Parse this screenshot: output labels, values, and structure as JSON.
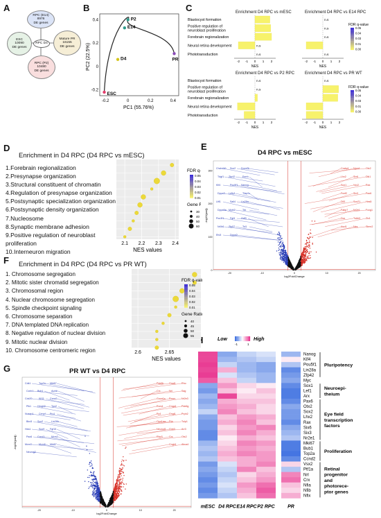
{
  "panel_labels": [
    "A",
    "B",
    "C",
    "D",
    "E",
    "F",
    "G",
    "H"
  ],
  "venn": {
    "esc": {
      "name": "ESC",
      "count": "10090",
      "unit": "DE genes"
    },
    "e14": {
      "name": "RPC (E14)",
      "count": "8976",
      "unit": "DE genes"
    },
    "p2": {
      "name": "RPC (P2)",
      "count": "10480",
      "unit": "DE genes"
    },
    "pr": {
      "name": "Mature PR",
      "count": "16155",
      "unit": "DE genes"
    },
    "center": "RPC D4"
  },
  "colors": {
    "up": "#d73027",
    "down": "#2c3fb7",
    "ns": "#111111",
    "fdr_low": "#f7f26b",
    "fdr_high": "#3a2bd8",
    "heat_low": "#3b6ee0",
    "heat_high": "#e8338e"
  },
  "chart_data": [
    {
      "id": "B",
      "type": "scatter",
      "xlabel": "PC1 (55.76%)",
      "ylabel": "PC2 (22.5%)",
      "xlim": [
        -0.25,
        0.45
      ],
      "ylim": [
        -0.25,
        0.45
      ],
      "xticks": [
        "-0.2",
        "0",
        "0.2",
        "0.4"
      ],
      "yticks": [
        "-0.2",
        "0",
        "0.2",
        "0.4"
      ],
      "points": [
        {
          "label": "ESC",
          "x": -0.21,
          "y": -0.22,
          "color": "#e23c6b"
        },
        {
          "label": "D4",
          "x": -0.09,
          "y": 0.06,
          "color": "#d4c51a"
        },
        {
          "label": "E14",
          "x": -0.03,
          "y": 0.33,
          "color": "#2e9a8a"
        },
        {
          "label": "P2",
          "x": 0.0,
          "y": 0.4,
          "color": "#2e9a8a"
        },
        {
          "label": "PR",
          "x": 0.41,
          "y": 0.11,
          "color": "#8a4bb8"
        }
      ]
    },
    {
      "id": "C",
      "type": "bar",
      "terms": [
        "Blastocyst formation",
        "Positive regulation of neuroblast proliferation",
        "Forebrain regionalization",
        "Neural retina development",
        "Phototransduction"
      ],
      "xlabel": "NES",
      "xticks": [
        "-2",
        "-1",
        "0",
        "1",
        "2"
      ],
      "legend_title": "FDR q-value",
      "legend_ticks": [
        "0.05",
        "0.04",
        "0.03",
        "0.01",
        "0.00"
      ],
      "facets": [
        {
          "title": "Enrichment D4 RPC vs mESC",
          "values": [
            1.8,
            1.9,
            2.0,
            -2.0,
            null
          ],
          "labels": [
            "",
            "",
            "",
            "n.s",
            "n.s"
          ]
        },
        {
          "title": "Enrichment D4 RPC vs E14 RPC",
          "values": [
            null,
            null,
            null,
            -2.0,
            null
          ],
          "labels": [
            "n.s",
            "n.s",
            "n.s",
            "",
            "n.s"
          ]
        },
        {
          "title": "Enrichment D4 RPC vs P2 RPC",
          "values": [
            null,
            null,
            0.3,
            -2.1,
            -1.3
          ],
          "labels": [
            "n.s",
            "n.s",
            "",
            "",
            ""
          ]
        },
        {
          "title": "Enrichment D4 RPC vs PR WT",
          "values": [
            null,
            1.9,
            1.8,
            -2.0,
            -2.0
          ],
          "labels": [
            "n.s",
            "",
            "",
            "",
            ""
          ]
        }
      ]
    },
    {
      "id": "D",
      "type": "scatter",
      "title": "Enrichment in D4 RPC (D4 RPC vs mESC)",
      "terms": [
        "1.Forebrain regionalization",
        "2.Presynapse organization",
        "3.Structural constituent of chromatin",
        "4.Regulation of presynapse organization",
        "5.Postsynaptic specialization organization",
        "6.Postsynaptic density organization",
        "7.Nucleosome",
        "8.Synaptic membrane adhesion",
        "9.Positive regulation of neuroblast proliferation",
        "10.Interneuron migration"
      ],
      "nes": [
        2.38,
        2.33,
        2.29,
        2.26,
        2.21,
        2.19,
        2.17,
        2.15,
        2.13,
        2.1
      ],
      "gene_ratio": [
        40,
        50,
        60,
        30,
        50,
        50,
        40,
        30,
        40,
        30
      ],
      "xlabel": "NES values",
      "xlim": [
        2.05,
        2.42
      ],
      "xticks": [
        "2.1",
        "2.2",
        "2.3",
        "2.4"
      ],
      "legend_color_title": "FDR q-value",
      "legend_color_ticks": [
        "0.05",
        "0.04",
        "0.03",
        "0.02",
        "0.01"
      ],
      "legend_size_title": "Gene Ratio (%)",
      "legend_size_ticks": [
        "30",
        "40",
        "50",
        "60"
      ]
    },
    {
      "id": "E",
      "type": "scatter",
      "title": "D4 RPC vs mESC",
      "xlabel": "log2FoldChange",
      "ylabel": "-log10(padj)",
      "xticks": [
        "-20",
        "-10",
        "0",
        "10",
        "20"
      ],
      "yticks": [
        "0",
        "100",
        "200",
        "300"
      ],
      "labels_left": [
        "Chchd10",
        "Sox2",
        "Dnmt3l",
        "Tdgf1",
        "Zfp42",
        "Esrrb",
        "Klf4",
        "Pou5f1",
        "Nanog",
        "Dppa3",
        "Lefty1",
        "Tfap2c",
        "Utf1",
        "Sall4",
        "Lin28a",
        "Dppa5a",
        "Mybl2",
        "Trh",
        "Pou3f1",
        "Fgf4",
        "Gdf3",
        "Nr0b1",
        "Zfp57",
        "Tcl1",
        "Etv5",
        "Dppa2"
      ],
      "labels_right": [
        "Otx2",
        "Npm1",
        "Crabp1",
        "Dlk1",
        "Six6",
        "Lhx2",
        "Rax",
        "Vsx2",
        "Sox1",
        "Pax6",
        "Six3",
        "Fezf2",
        "Hes5",
        "Sox21",
        "Dll3",
        "Foxg1",
        "Nr2e1",
        "Fabp7",
        "Zic1",
        "Tubb3",
        "Dcx",
        "Stmn2",
        "Nes",
        "Ascl1"
      ]
    },
    {
      "id": "F",
      "type": "scatter",
      "title": "Enrichment in D4 RPC (D4 RPC vs PR WT)",
      "terms": [
        "1. Chromosome segregation",
        "2. Mitotic sister chromatid segregation",
        "3. Chromosomal region",
        "4. Nuclear chromosome segregation",
        "5. Spindle checkpoint signaling",
        "6. Chromosome separation",
        "7. DNA templated DNA replication",
        "8. Negative regulation of nuclear division",
        "9. Mitotic nuclear division",
        "10. Chromosome centromeric region"
      ],
      "nes": [
        2.69,
        2.69,
        2.67,
        2.66,
        2.66,
        2.65,
        2.64,
        2.63,
        2.63,
        2.63
      ],
      "gene_ratio": [
        50,
        45,
        50,
        55,
        40,
        45,
        40,
        40,
        40,
        45
      ],
      "xlabel": "NES values",
      "xlim": [
        2.59,
        2.7
      ],
      "xticks": [
        "2.6",
        "2.65"
      ],
      "legend_color_title": "FDR q-value",
      "legend_color_ticks": [
        "0.05",
        "0.04",
        "0.03",
        "0.02",
        "0.01"
      ],
      "legend_size_title": "Gene Ratio (%)",
      "legend_size_ticks": [
        "40",
        "45",
        "50",
        "55"
      ]
    },
    {
      "id": "G",
      "type": "scatter",
      "title": "PR WT vs D4 RPC",
      "xlabel": "log2FoldChange",
      "ylabel": "-log10(padj)",
      "xticks": [
        "-20",
        "-10",
        "0",
        "10",
        "20"
      ],
      "labels_left": [
        "Cdk1",
        "Top2a",
        "Mki67",
        "Ccnb1",
        "Bub1",
        "Aurkb",
        "Cdc20",
        "Kif11",
        "Ccna2",
        "Plk1",
        "Hmgb2",
        "Tpx2",
        "Nusap1",
        "Cenpf",
        "Prc1",
        "Birc5",
        "Sox2",
        "Lin28b",
        "Hes1",
        "Sox9",
        "Fgf15",
        "Pax6",
        "Ccnd1",
        "Mcm2",
        "Mcm3",
        "Mcm6",
        "Mki67",
        "Neurog2"
      ],
      "labels_right": [
        "Rho",
        "Gnat1",
        "Pde6b",
        "Sag",
        "Nrl",
        "Crx",
        "Nr2e3",
        "Rcvrn",
        "Guca1a",
        "Pde6g",
        "Cnga1",
        "Rom1",
        "Prph2",
        "Gngt1",
        "Rp1",
        "Tulp1",
        "Pdc",
        "Opn1sw",
        "Arr3",
        "Gnb3",
        "Neurod1",
        "Otx2",
        "Crx",
        "Rbp3",
        "Abca4",
        "Cngb1"
      ]
    },
    {
      "id": "H",
      "type": "heatmap",
      "columns": [
        "mESC",
        "D4 RPC",
        "E14 RPC",
        "P2 RPC",
        "PR"
      ],
      "legend_low": "Low",
      "legend_high": "High",
      "legend_ticks": [
        "-1",
        "1"
      ],
      "genes": [
        "Nanog",
        "Klf4",
        "Pou5f1",
        "Lin28a",
        "Zfp42",
        "Myc",
        "Sox1",
        "Lef1",
        "Arx",
        "Pax6",
        "Otx2",
        "Sox2",
        "Lhx2",
        "Rax",
        "Six6",
        "Six3",
        "Nr2e1",
        "Mki67",
        "Bub1",
        "Top2a",
        "Ccnd2",
        "Vsx2",
        "Ptf1a",
        "Nrl",
        "Crx",
        "Nfia",
        "Nfib",
        "Nfix"
      ],
      "groups": [
        {
          "label": "Pluripotency",
          "start": 0,
          "end": 4
        },
        {
          "label": "Neuroepi-\ntheium",
          "start": 6,
          "end": 8
        },
        {
          "label": "Eye field\ntranscription\nfactors",
          "start": 9,
          "end": 16
        },
        {
          "label": "Proliferation",
          "start": 17,
          "end": 20
        },
        {
          "label": "Retinal\nprogenitor\nand\nphotorece-\nptor genes",
          "start": 21,
          "end": 27
        }
      ],
      "values": [
        [
          0.9,
          -0.6,
          -0.3,
          -0.2,
          -0.5
        ],
        [
          0.9,
          -0.5,
          -0.4,
          -0.3,
          0.1
        ],
        [
          0.95,
          -0.3,
          -0.5,
          -0.6,
          -0.4
        ],
        [
          0.9,
          0.4,
          -0.5,
          -0.6,
          -0.8
        ],
        [
          0.95,
          -0.2,
          -0.4,
          -0.5,
          -0.7
        ],
        [
          0.8,
          0.3,
          -0.3,
          -0.5,
          -0.6
        ],
        [
          -0.6,
          0.5,
          0.2,
          0.1,
          -0.8
        ],
        [
          -0.7,
          0.3,
          0.1,
          0.3,
          -0.9
        ],
        [
          -0.5,
          0.9,
          0.2,
          0.2,
          -0.9
        ],
        [
          -0.6,
          0.4,
          0.3,
          0.3,
          -0.8
        ],
        [
          -0.5,
          0.5,
          0.4,
          0.2,
          -0.6
        ],
        [
          -0.3,
          0.6,
          0.3,
          0.2,
          -0.7
        ],
        [
          -0.6,
          0.3,
          0.5,
          0.4,
          -0.7
        ],
        [
          -0.7,
          0.4,
          0.6,
          0.3,
          -0.8
        ],
        [
          -0.7,
          0.2,
          0.5,
          0.6,
          -0.6
        ],
        [
          -0.8,
          0.3,
          0.6,
          0.4,
          -0.5
        ],
        [
          -0.8,
          0.1,
          0.4,
          0.3,
          -0.4
        ],
        [
          -0.5,
          0.2,
          0.6,
          0.5,
          -0.9
        ],
        [
          -0.4,
          0.3,
          0.5,
          0.4,
          -0.9
        ],
        [
          -0.5,
          0.4,
          0.6,
          0.5,
          -0.95
        ],
        [
          -0.4,
          0.3,
          0.4,
          0.5,
          -0.8
        ],
        [
          -0.7,
          -0.2,
          0.4,
          0.6,
          0.2
        ],
        [
          -0.6,
          -0.3,
          0.6,
          0.3,
          -0.4
        ],
        [
          -0.7,
          -0.4,
          0.2,
          0.4,
          0.6
        ],
        [
          -0.8,
          -0.3,
          0.3,
          0.5,
          0.7
        ],
        [
          -0.7,
          -0.2,
          0.5,
          0.7,
          0.3
        ],
        [
          -0.8,
          -0.3,
          0.4,
          0.8,
          0.2
        ],
        [
          -0.7,
          -0.4,
          0.3,
          0.7,
          0.4
        ]
      ]
    }
  ]
}
